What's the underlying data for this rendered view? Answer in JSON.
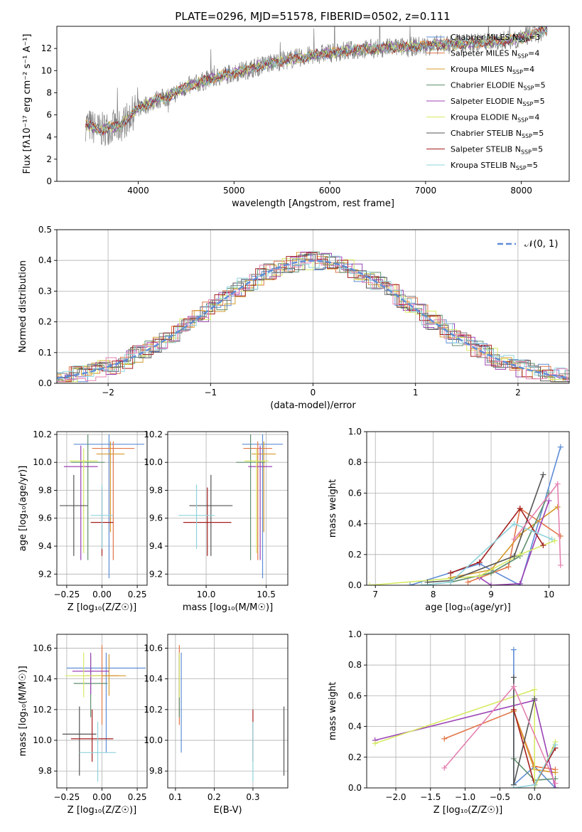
{
  "title": "PLATE=0296, MJD=51578, FIBERID=0502, z=0.111",
  "models": [
    {
      "name": "Chabrier MILES",
      "nssp": "3",
      "color": "#5e8dd6"
    },
    {
      "name": "Salpeter MILES",
      "nssp": "4",
      "color": "#e2774a"
    },
    {
      "name": "Kroupa MILES",
      "nssp": "4",
      "color": "#d59b2d"
    },
    {
      "name": "Chabrier ELODIE",
      "nssp": "5",
      "color": "#5f8f6f"
    },
    {
      "name": "Salpeter ELODIE",
      "nssp": "5",
      "color": "#9b42b5"
    },
    {
      "name": "Kroupa ELODIE",
      "nssp": "4",
      "color": "#d7ea64"
    },
    {
      "name": "Chabrier STELIB",
      "nssp": "5",
      "color": "#555555"
    },
    {
      "name": "Salpeter STELIB",
      "nssp": "5",
      "color": "#a51f1f"
    },
    {
      "name": "Kroupa STELIB",
      "nssp": "5",
      "color": "#8fd3db"
    }
  ],
  "extra_colors": [
    "#e582b2",
    "#7f7f7f"
  ],
  "chart_data": [
    {
      "id": "spectrum",
      "type": "line",
      "xlabel": "wavelength [Angstrom, rest frame]",
      "ylabel": "Flux [f$_\\lambda$10$^{-17}$ erg cm$^{-2}$ s$^{-1}$ A$^{-1}$]",
      "xlim": [
        3150,
        8500
      ],
      "ylim": [
        0,
        14
      ],
      "xticks": [
        4000,
        5000,
        6000,
        7000,
        8000
      ],
      "yticks": [
        0,
        2,
        4,
        6,
        8,
        10,
        12
      ],
      "grid": false,
      "legend": "top-right",
      "trend_x": [
        3450,
        3600,
        3700,
        3800,
        3900,
        4000,
        4100,
        4200,
        4300,
        4400,
        4500,
        4700,
        4900,
        5100,
        5300,
        5500,
        5700,
        5900,
        6100,
        6300,
        6500,
        6700,
        6900,
        7100,
        7300,
        7500,
        7700,
        7900,
        8100,
        8250
      ],
      "trend_y": [
        5.2,
        4.6,
        4.9,
        4.9,
        5.8,
        6.6,
        7.0,
        7.4,
        7.6,
        8.0,
        8.5,
        9.1,
        9.6,
        10.0,
        10.5,
        10.9,
        11.2,
        11.5,
        11.7,
        11.9,
        12.0,
        12.1,
        12.2,
        12.3,
        12.4,
        12.5,
        12.6,
        12.8,
        13.2,
        13.7
      ]
    },
    {
      "id": "residuals",
      "type": "line",
      "xlabel": "(data-model)/error",
      "ylabel": "Normed distribution",
      "xlim": [
        -2.5,
        2.5
      ],
      "ylim": [
        0,
        0.5
      ],
      "xticks": [
        -2,
        -1,
        0,
        1,
        2
      ],
      "yticks": [
        0.0,
        0.1,
        0.2,
        0.3,
        0.4,
        0.5
      ],
      "grid": true,
      "legend": "top-right",
      "curve_label": "N(0,1)"
    },
    {
      "id": "age_vs_Z",
      "type": "scatter",
      "xlabel": "Z [log10(Z/Z☉)]",
      "ylabel": "age [log10(age/yr)]",
      "xlim": [
        -0.32,
        0.32
      ],
      "ylim": [
        9.12,
        10.22
      ],
      "xticks": [
        -0.25,
        0.0,
        0.25
      ],
      "yticks": [
        9.2,
        9.4,
        9.6,
        9.8,
        10.0,
        10.2
      ],
      "grid": true,
      "points": [
        [
          0.05,
          10.13,
          0.25,
          10.2,
          9.17
        ],
        [
          0.08,
          10.1,
          0.15,
          10.15,
          9.3
        ],
        [
          0.06,
          10.06,
          0.1,
          10.15,
          9.5
        ],
        [
          -0.1,
          10.0,
          0.12,
          10.2,
          9.3
        ],
        [
          -0.15,
          9.97,
          0.12,
          10.12,
          9.3
        ],
        [
          -0.13,
          10.01,
          0.1,
          10.1,
          9.35
        ],
        [
          -0.2,
          9.69,
          0.1,
          9.91,
          9.33
        ],
        [
          0.0,
          9.57,
          0.08,
          9.82,
          9.33
        ],
        [
          0.0,
          9.62,
          0.08,
          9.84,
          9.38
        ]
      ]
    },
    {
      "id": "age_vs_mass",
      "type": "scatter",
      "xlabel": "mass [log10(M/M☉)]",
      "ylabel": "",
      "xlim": [
        9.68,
        10.68
      ],
      "ylim": [
        9.12,
        10.22
      ],
      "xticks": [
        10.0,
        10.5
      ],
      "yticks": [
        9.2,
        9.4,
        9.6,
        9.8,
        10.0,
        10.2
      ],
      "grid": true,
      "points": [
        [
          10.47,
          10.13,
          0.17,
          10.2,
          9.17
        ],
        [
          10.43,
          10.1,
          0.12,
          10.15,
          9.3
        ],
        [
          10.48,
          10.06,
          0.1,
          10.15,
          9.5
        ],
        [
          10.37,
          10.0,
          0.12,
          10.2,
          9.3
        ],
        [
          10.45,
          9.97,
          0.1,
          10.12,
          9.3
        ],
        [
          10.42,
          10.01,
          0.1,
          10.1,
          9.35
        ],
        [
          10.04,
          9.69,
          0.18,
          9.91,
          9.33
        ],
        [
          10.01,
          9.57,
          0.2,
          9.82,
          9.33
        ],
        [
          9.92,
          9.62,
          0.15,
          9.84,
          9.38
        ]
      ]
    },
    {
      "id": "weight_vs_age",
      "type": "line",
      "xlabel": "age [log10(age/yr)]",
      "ylabel": "mass weight",
      "xlim": [
        6.85,
        10.35
      ],
      "ylim": [
        0,
        1
      ],
      "xticks": [
        7,
        8,
        9,
        10
      ],
      "yticks": [
        0.0,
        0.2,
        0.4,
        0.6,
        0.8,
        1.0
      ],
      "grid": true,
      "series": [
        {
          "x": [
            7.6,
            8.8,
            9.5,
            10.2
          ],
          "y": [
            0.0,
            0.14,
            0.0,
            0.9
          ]
        },
        {
          "x": [
            8.6,
            9.3,
            9.5,
            10.2
          ],
          "y": [
            0.02,
            0.12,
            0.5,
            0.32
          ]
        },
        {
          "x": [
            8.3,
            9.0,
            9.5,
            10.15
          ],
          "y": [
            0.05,
            0.1,
            0.33,
            0.51
          ]
        },
        {
          "x": [
            8.3,
            9.0,
            9.5,
            10.0
          ],
          "y": [
            0.02,
            0.08,
            0.19,
            0.6
          ]
        },
        {
          "x": [
            8.8,
            9.0,
            9.5,
            10.0
          ],
          "y": [
            0.05,
            0.0,
            0.01,
            0.55
          ]
        },
        {
          "x": [
            6.9,
            8.8,
            9.5,
            10.1
          ],
          "y": [
            0.0,
            0.06,
            0.2,
            0.29
          ]
        },
        {
          "x": [
            7.9,
            8.3,
            9.4,
            9.9
          ],
          "y": [
            0.02,
            0.03,
            0.19,
            0.72
          ]
        },
        {
          "x": [
            8.3,
            8.8,
            9.5,
            9.9
          ],
          "y": [
            0.08,
            0.15,
            0.5,
            0.26
          ]
        },
        {
          "x": [
            7.8,
            8.3,
            9.4,
            10.05
          ],
          "y": [
            0.0,
            0.02,
            0.4,
            0.3
          ]
        },
        {
          "x": [
            9.4,
            10.15,
            10.2
          ],
          "y": [
            0.3,
            0.66,
            0.13
          ]
        }
      ]
    },
    {
      "id": "mass_vs_Z",
      "type": "scatter",
      "xlabel": "Z [log10(Z/Z☉)]",
      "ylabel": "mass [log10(M/M☉)]",
      "xlim": [
        -0.32,
        0.32
      ],
      "ylim": [
        9.69,
        10.69
      ],
      "xticks": [
        -0.25,
        0.0,
        0.25
      ],
      "yticks": [
        9.8,
        10.0,
        10.2,
        10.4,
        10.6
      ],
      "grid": true,
      "points": [
        [
          0.03,
          10.47,
          0.28,
          10.57,
          9.92
        ],
        [
          0.0,
          10.42,
          0.12,
          10.62,
          10.1
        ],
        [
          0.05,
          10.42,
          0.12,
          10.56,
          10.29
        ],
        [
          -0.08,
          10.37,
          0.12,
          10.55,
          10.15
        ],
        [
          -0.08,
          10.45,
          0.13,
          10.57,
          10.3
        ],
        [
          -0.13,
          10.42,
          0.13,
          10.57,
          10.28
        ],
        [
          -0.16,
          10.04,
          0.12,
          10.22,
          9.77
        ],
        [
          -0.07,
          10.01,
          0.15,
          10.2,
          9.86
        ],
        [
          -0.03,
          9.92,
          0.13,
          10.12,
          9.73
        ]
      ]
    },
    {
      "id": "mass_vs_ebv",
      "type": "scatter",
      "xlabel": "E(B-V)",
      "ylabel": "",
      "xlim": [
        0.08,
        0.39
      ],
      "ylim": [
        9.69,
        10.69
      ],
      "xticks": [
        0.1,
        0.2,
        0.3
      ],
      "yticks": [
        9.8,
        10.0,
        10.2,
        10.4,
        10.6
      ],
      "grid": true,
      "points": [
        [
          0.115,
          10.47,
          0.0,
          10.57,
          9.92
        ],
        [
          0.11,
          10.42,
          0.0,
          10.62,
          10.1
        ],
        [
          0.11,
          10.42,
          0.0,
          10.56,
          10.29
        ],
        [
          0.11,
          10.37,
          0.0,
          10.55,
          10.15
        ],
        [
          0.11,
          10.45,
          0.0,
          10.57,
          10.3
        ],
        [
          0.11,
          10.42,
          0.0,
          10.57,
          10.28
        ],
        [
          0.38,
          10.04,
          0.0,
          10.22,
          9.77
        ],
        [
          0.3,
          10.01,
          0.0,
          10.2,
          9.86
        ],
        [
          0.3,
          9.92,
          0.0,
          10.12,
          9.73
        ]
      ]
    },
    {
      "id": "weight_vs_Z",
      "type": "line",
      "xlabel": "Z [log10(Z/Z☉)]",
      "ylabel": "mass weight",
      "xlim": [
        -2.42,
        0.5
      ],
      "ylim": [
        0,
        1
      ],
      "xticks": [
        -2.0,
        -1.5,
        -1.0,
        -0.5,
        0.0
      ],
      "yticks": [
        0.0,
        0.2,
        0.4,
        0.6,
        0.8,
        1.0
      ],
      "grid": true,
      "series": [
        {
          "x": [
            -0.3,
            -0.3,
            0.0,
            0.3
          ],
          "y": [
            0.9,
            0.02,
            0.14,
            0.0
          ]
        },
        {
          "x": [
            -1.3,
            -0.3,
            0.0,
            0.3
          ],
          "y": [
            0.32,
            0.5,
            0.14,
            0.12
          ]
        },
        {
          "x": [
            -0.3,
            0.0,
            0.3
          ],
          "y": [
            0.5,
            0.12,
            0.1
          ]
        },
        {
          "x": [
            -0.3,
            0.0,
            0.3
          ],
          "y": [
            0.19,
            0.05,
            0.06
          ]
        },
        {
          "x": [
            -2.3,
            0.0,
            0.3
          ],
          "y": [
            0.31,
            0.57,
            0.0
          ]
        },
        {
          "x": [
            -2.3,
            0.0,
            0.0,
            0.3
          ],
          "y": [
            0.29,
            0.64,
            0.0,
            0.3
          ]
        },
        {
          "x": [
            -0.3,
            -0.3,
            0.0
          ],
          "y": [
            0.72,
            0.02,
            0.58
          ]
        },
        {
          "x": [
            -0.3,
            0.0,
            0.3
          ],
          "y": [
            0.51,
            0.02,
            0.26
          ]
        },
        {
          "x": [
            -0.3,
            0.0,
            0.3
          ],
          "y": [
            0.0,
            0.02,
            0.28
          ]
        },
        {
          "x": [
            -1.3,
            -0.3,
            0.3
          ],
          "y": [
            0.13,
            0.66,
            0.03
          ]
        }
      ]
    }
  ],
  "y_axis_labels": {
    "age": "age  [log₁₀(age/yr)]",
    "mass": "mass [log₁₀(M/M☉)]",
    "weight": "mass weight",
    "norm": "Normed distribution",
    "flux": "Flux [fλ10⁻¹⁷ erg cm⁻² s⁻¹ A⁻¹]"
  },
  "x_axis_labels": {
    "Z": "Z [log₁₀(Z/Z☉)]",
    "mass": "mass [log₁₀(M/M☉)]",
    "age": "age  [log₁₀(age/yr)]",
    "ebv": "E(B-V)",
    "wl": "wavelength [Angstrom, rest frame]",
    "res": "(data-model)/error"
  },
  "legend_text": {
    "nssp_prefix": "N",
    "nssp_sub": "SSP",
    "curve": "𝒩(0, 1)"
  }
}
